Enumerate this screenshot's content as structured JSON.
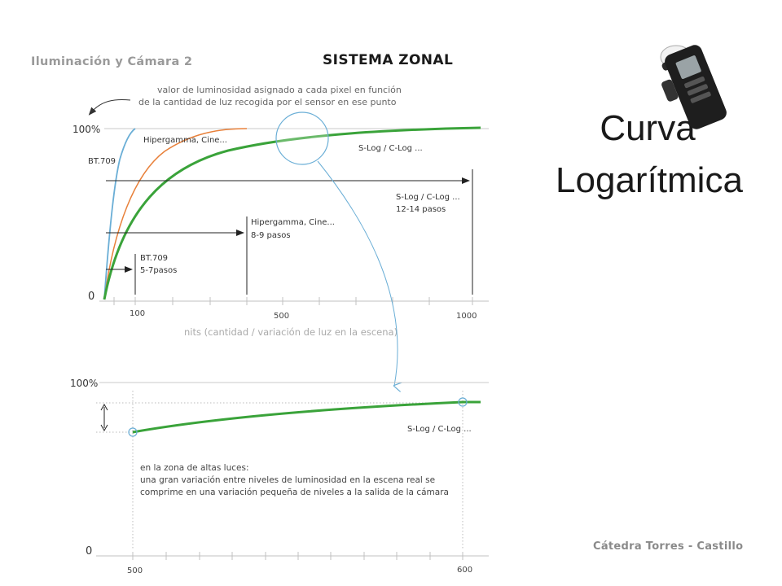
{
  "slide": {
    "course_label": "Iluminación y Cámara 2",
    "section_label": "SISTEMA ZONAL",
    "title_line1": "Curva",
    "title_line2": "Logarítmica",
    "footer": "Cátedra Torres - Castillo"
  },
  "colors": {
    "slog": "#3aa33a",
    "hypergamma": "#e8803a",
    "bt709": "#6aaed6",
    "guide": "#bbbbbb",
    "text": "#333333",
    "muted": "#999999"
  },
  "icons": [
    "light-meter-icon"
  ],
  "chart_data": [
    {
      "type": "line",
      "y_axis_labels": [
        "100%",
        "0"
      ],
      "x_ticks": [
        100,
        500,
        1000
      ],
      "xlabel": "nits (cantidad / variación de luz en la escena)",
      "ylabel_note": [
        "valor de luminosidad asignado a cada pixel en función",
        "de la cantidad de luz recogida por el sensor en ese punto"
      ],
      "xlim": [
        0,
        1000
      ],
      "ylim": [
        0,
        100
      ],
      "grid": "horizontal at 0 and 100%",
      "series": [
        {
          "name": "BT.709",
          "saturation_nits": 100
        },
        {
          "name": "Hipergamma, Cine...",
          "saturation_nits": 400
        },
        {
          "name": "S-Log / C-Log ...",
          "saturation_nits": 1000
        }
      ],
      "range_annotations": [
        {
          "label": [
            "BT.709",
            "5-7pasos"
          ],
          "end_nits": 100
        },
        {
          "label": [
            "Hipergamma, Cine...",
            "8-9 pasos"
          ],
          "end_nits": 400
        },
        {
          "label": [
            "S-Log / C-Log ...",
            "12-14 pasos"
          ],
          "end_nits": 1000
        }
      ],
      "curve_labels": [
        "Hipergamma, Cine...",
        "BT.709",
        "S-Log / C-Log ..."
      ]
    },
    {
      "type": "line",
      "title": "",
      "y_axis_labels": [
        "100%",
        "0"
      ],
      "x_ticks": [
        500,
        600
      ],
      "xlim": [
        500,
        600
      ],
      "series": [
        {
          "name": "S-Log / C-Log ...",
          "x": [
            500,
            600
          ],
          "y": [
            81,
            89
          ]
        }
      ],
      "annotation": [
        "en la zona de altas luces:",
        "una gran variación entre niveles de luminosidad en la escena real se",
        "comprime en una variación pequeña de niveles a la salida de la cámara"
      ]
    }
  ]
}
